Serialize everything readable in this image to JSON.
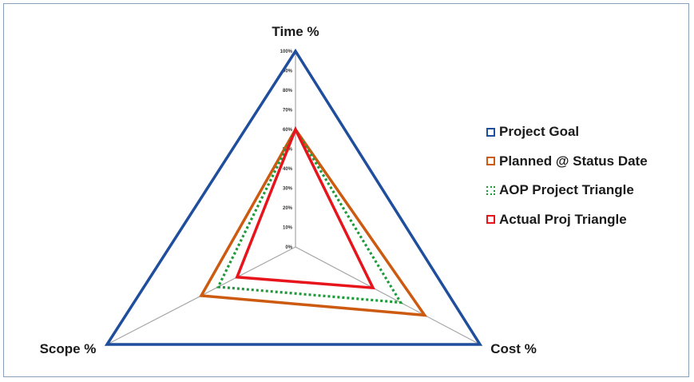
{
  "chart_data": {
    "type": "radar",
    "axes": [
      "Time %",
      "Cost %",
      "Scope %"
    ],
    "ticks": [
      "0%",
      "10%",
      "20%",
      "30%",
      "40%",
      "50%",
      "60%",
      "70%",
      "80%",
      "90%",
      "100%"
    ],
    "range": [
      0,
      100
    ],
    "grid": true,
    "legend_position": "right",
    "series": [
      {
        "name": "Project Goal",
        "values": [
          100,
          100,
          100
        ],
        "color": "#1f4e9c",
        "style": "solid"
      },
      {
        "name": "Planned @ Status Date",
        "values": [
          60,
          70,
          50
        ],
        "color": "#cc5a10",
        "style": "solid"
      },
      {
        "name": "AOP Project Triangle",
        "values": [
          60,
          57,
          41
        ],
        "color": "#1e9a3a",
        "style": "dotted"
      },
      {
        "name": "Actual Proj Triangle",
        "values": [
          60,
          42,
          31
        ],
        "color": "#e8141c",
        "style": "solid"
      }
    ]
  }
}
